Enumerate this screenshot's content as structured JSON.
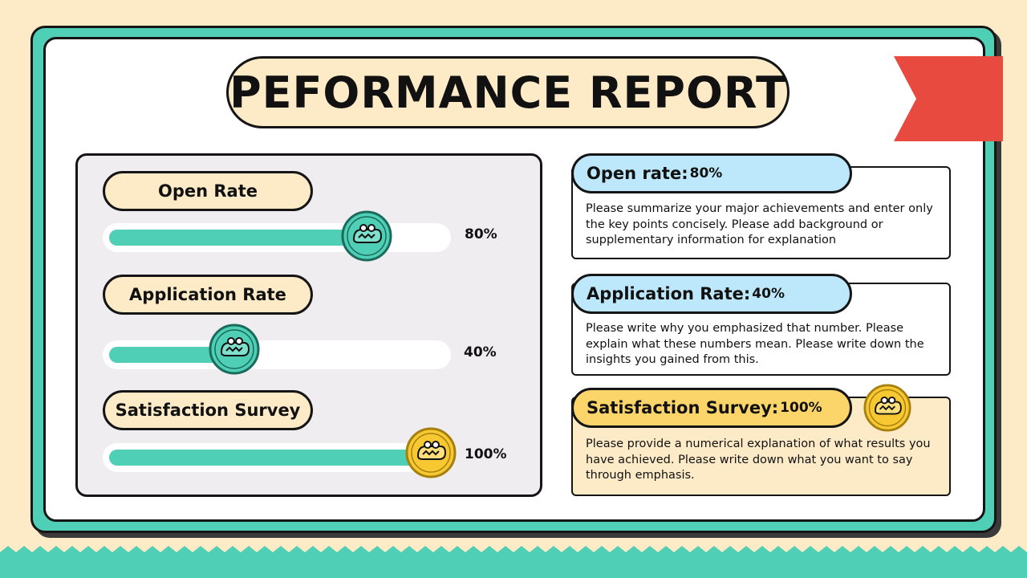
{
  "title": "PEFORMANCE REPORT",
  "colors": {
    "accent": "#4fcfb6",
    "cream": "#fdebc7",
    "blue": "#bde7fb",
    "gold": "#fbd56a",
    "ribbon": "#e84a3f"
  },
  "metrics": [
    {
      "label": "Open Rate",
      "value": "80%",
      "progress": 80
    },
    {
      "label": "Application Rate",
      "value": "40%",
      "progress": 40
    },
    {
      "label": "Satisfaction Survey",
      "value": "100%",
      "progress": 100
    }
  ],
  "cards": [
    {
      "heading": "Open rate",
      "sep": " : ",
      "value": "80%",
      "text": "Please summarize your major achievements and enter only the key points concisely. Please add background or supplementary information for explanation"
    },
    {
      "heading": "Application Rate",
      "sep": " : ",
      "value": "40%",
      "text": "Please write why you emphasized that number. Please explain what these numbers mean. Please write down the insights you gained from this."
    },
    {
      "heading": "Satisfaction Survey",
      "sep": " : ",
      "value": "100%",
      "text": "Please provide a numerical explanation of what results you have achieved. Please write down what you want to say through emphasis."
    }
  ],
  "icons": {
    "knob": "crocodile-icon",
    "ribbon": "ribbon-flag-icon"
  }
}
